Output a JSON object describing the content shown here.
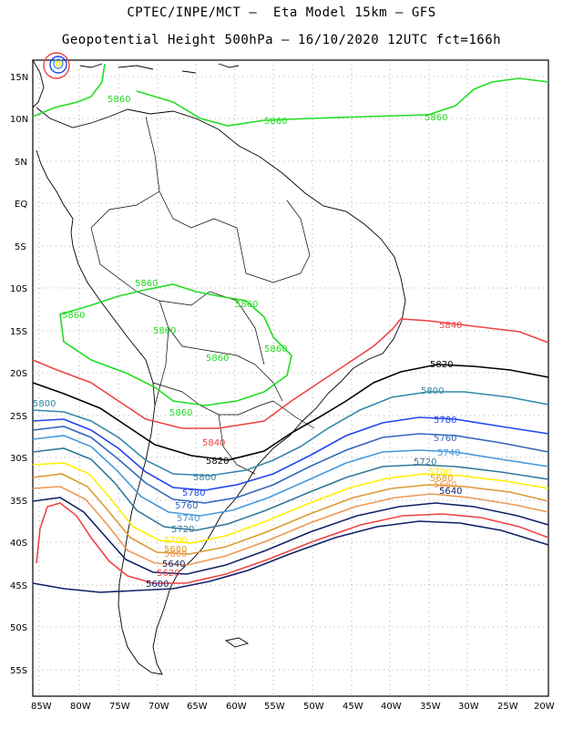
{
  "header": {
    "line1": "CPTEC/INPE/MCT –  Eta Model 15km – GFS",
    "line2": "Geopotential Height 500hPa – 16/10/2020 12UTC fct=166h"
  },
  "axes": {
    "lat_labels": [
      "15N",
      "10N",
      "5N",
      "EQ",
      "5S",
      "10S",
      "15S",
      "20S",
      "25S",
      "30S",
      "35S",
      "40S",
      "45S",
      "50S",
      "55S"
    ],
    "lon_labels": [
      "85W",
      "80W",
      "75W",
      "70W",
      "65W",
      "60W",
      "55W",
      "50W",
      "45W",
      "40W",
      "35W",
      "30W",
      "25W",
      "20W"
    ]
  },
  "colors": {
    "c5860": "#22dd22",
    "c5840": "#ee4444",
    "c5820": "#000000",
    "c5800": "#3388aa",
    "c5780": "#2244ee",
    "c5760": "#3366bb",
    "c5740": "#4499dd",
    "c5720": "#337799",
    "c5700": "#ffee00",
    "c5680": "#dd9933",
    "c5660": "#ee9955",
    "c5620": "#ee4444",
    "c5600": "#112266"
  },
  "contour_labels": {
    "l5860a": "5860",
    "l5860b": "5860",
    "l5860c": "5860",
    "l5860d": "5860",
    "l5860e": "5860",
    "l5860f": "5860",
    "l5860g": "5860",
    "l5860h": "5860",
    "l5860i": "5860",
    "l5860j": "5860",
    "l5840a": "5840",
    "l5840b": "5840",
    "l5820a": "5820",
    "l5820b": "5820",
    "l5800a": "5800",
    "l5800b": "5800",
    "l5800c": "5800",
    "l5780a": "5780",
    "l5780b": "5780",
    "l5760a": "5760",
    "l5760b": "5760",
    "l5740a": "5740",
    "l5740b": "5740",
    "l5720a": "5720",
    "l5720b": "5720",
    "l5700a": "5700",
    "l5700b": "5700",
    "l5680a": "5680",
    "l5680b": "5680",
    "l5660a": "5660",
    "l5660b": "5660",
    "l5640a": "5640",
    "l5640b": "5640",
    "l5620a": "5620",
    "l5600a": "5600"
  }
}
